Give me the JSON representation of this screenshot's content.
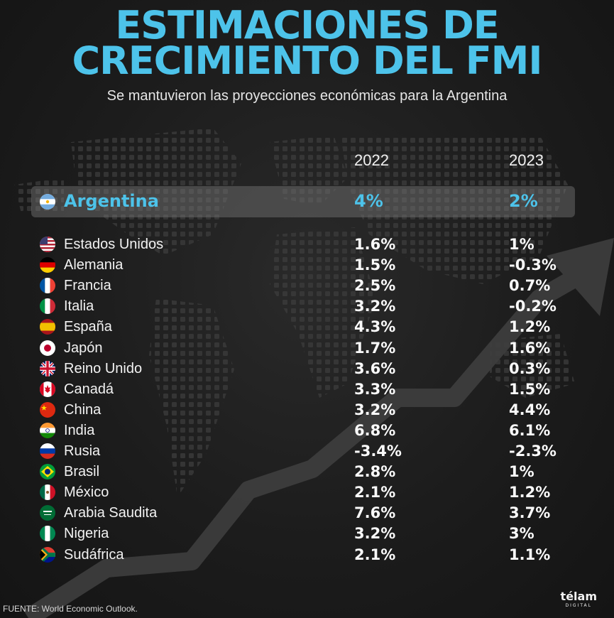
{
  "title_line1": "ESTIMACIONES DE",
  "title_line2": "CRECIMIENTO DEL FMI",
  "subtitle": "Se mantuvieron las proyecciones económicas para la Argentina",
  "source": "FUENTE: World Economic Outlook.",
  "logo": "télam",
  "logo_sub": "DIGITAL",
  "accent_color": "#4dc3ea",
  "chart_data": {
    "type": "table",
    "columns": [
      "2022",
      "2023"
    ],
    "highlight": {
      "country": "Argentina",
      "flag": "argentina-flag-icon",
      "v2022": "4%",
      "v2023": "2%"
    },
    "rows": [
      {
        "country": "Estados Unidos",
        "flag": "usa-flag-icon",
        "v2022": "1.6%",
        "v2023": "1%"
      },
      {
        "country": "Alemania",
        "flag": "germany-flag-icon",
        "v2022": "1.5%",
        "v2023": "-0.3%"
      },
      {
        "country": "Francia",
        "flag": "france-flag-icon",
        "v2022": "2.5%",
        "v2023": "0.7%"
      },
      {
        "country": "Italia",
        "flag": "italy-flag-icon",
        "v2022": "3.2%",
        "v2023": "-0.2%"
      },
      {
        "country": "España",
        "flag": "spain-flag-icon",
        "v2022": "4.3%",
        "v2023": "1.2%"
      },
      {
        "country": "Japón",
        "flag": "japan-flag-icon",
        "v2022": "1.7%",
        "v2023": "1.6%"
      },
      {
        "country": "Reino Unido",
        "flag": "uk-flag-icon",
        "v2022": "3.6%",
        "v2023": "0.3%"
      },
      {
        "country": "Canadá",
        "flag": "canada-flag-icon",
        "v2022": "3.3%",
        "v2023": "1.5%"
      },
      {
        "country": "China",
        "flag": "china-flag-icon",
        "v2022": "3.2%",
        "v2023": "4.4%"
      },
      {
        "country": "India",
        "flag": "india-flag-icon",
        "v2022": "6.8%",
        "v2023": "6.1%"
      },
      {
        "country": "Rusia",
        "flag": "russia-flag-icon",
        "v2022": "-3.4%",
        "v2023": "-2.3%"
      },
      {
        "country": "Brasil",
        "flag": "brazil-flag-icon",
        "v2022": "2.8%",
        "v2023": "1%"
      },
      {
        "country": "México",
        "flag": "mexico-flag-icon",
        "v2022": "2.1%",
        "v2023": "1.2%"
      },
      {
        "country": "Arabia Saudita",
        "flag": "saudi-arabia-flag-icon",
        "v2022": "7.6%",
        "v2023": "3.7%"
      },
      {
        "country": "Nigeria",
        "flag": "nigeria-flag-icon",
        "v2022": "3.2%",
        "v2023": "3%"
      },
      {
        "country": "Sudáfrica",
        "flag": "south-africa-flag-icon",
        "v2022": "2.1%",
        "v2023": "1.1%"
      }
    ]
  }
}
